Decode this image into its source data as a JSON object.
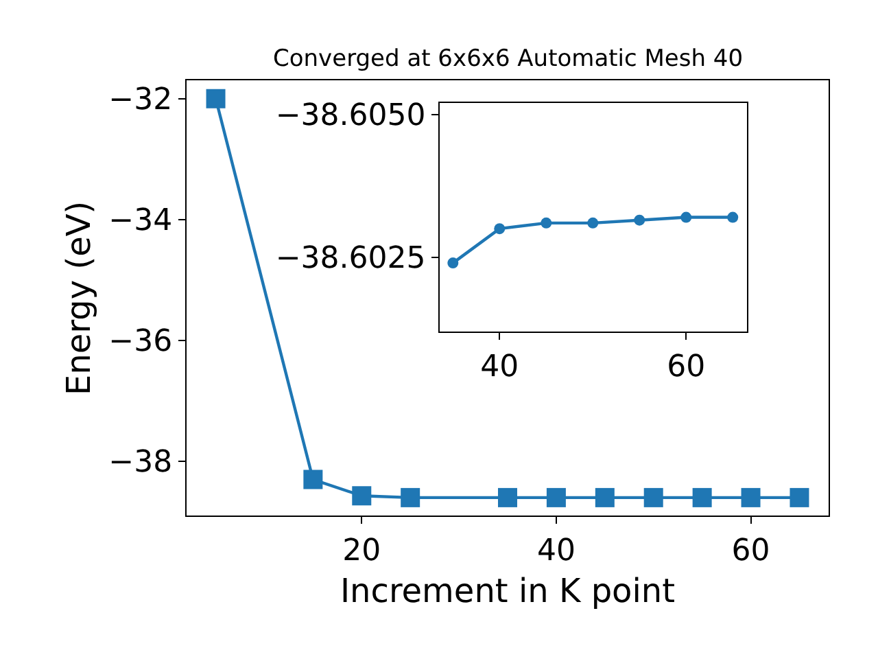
{
  "chart_data": [
    {
      "type": "line",
      "title": "Converged at 6x6x6 Automatic Mesh 40",
      "xlabel": "Increment in K point",
      "ylabel": "Energy (eV)",
      "x": [
        5,
        15,
        20,
        25,
        35,
        40,
        45,
        50,
        55,
        60,
        65
      ],
      "series": [
        {
          "color": "#1f77b4",
          "values": [
            -32.0,
            -38.3,
            -38.57,
            -38.6,
            -38.6,
            -38.6,
            -38.6,
            -38.6,
            -38.6,
            -38.6,
            -38.6
          ]
        }
      ],
      "xlim": [
        2,
        68
      ],
      "xticks": [
        20,
        40,
        60
      ],
      "ylim": [
        -38.9,
        -31.7
      ],
      "yticks": [
        -38,
        -36,
        -34,
        -32
      ],
      "marker": "square",
      "line_style": "solid"
    },
    {
      "type": "line",
      "x": [
        35,
        40,
        45,
        50,
        55,
        60,
        65
      ],
      "series": [
        {
          "color": "#1f77b4",
          "values": [
            -38.6024,
            -38.603,
            -38.6031,
            -38.6031,
            -38.60315,
            -38.6032,
            -38.6032
          ]
        }
      ],
      "xlim": [
        33.6,
        66.5
      ],
      "xticks": [
        40,
        60
      ],
      "ylim": [
        -38.6012,
        -38.6052
      ],
      "yticks": [
        {
          "value": -38.6025,
          "label": "−38.6025"
        },
        {
          "value": -38.605,
          "label": "−38.6050"
        }
      ],
      "marker": "circle",
      "line_style": "solid"
    }
  ]
}
